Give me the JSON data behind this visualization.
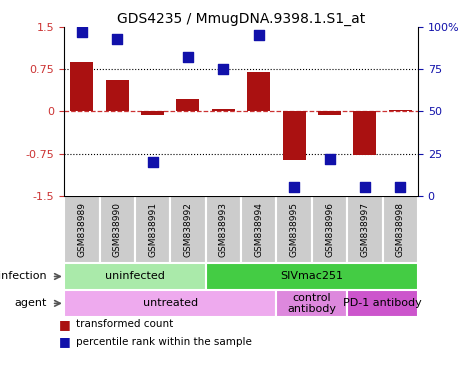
{
  "title": "GDS4235 / MmugDNA.9398.1.S1_at",
  "samples": [
    "GSM838989",
    "GSM838990",
    "GSM838991",
    "GSM838992",
    "GSM838993",
    "GSM838994",
    "GSM838995",
    "GSM838996",
    "GSM838997",
    "GSM838998"
  ],
  "bar_values": [
    0.88,
    0.55,
    -0.07,
    0.22,
    0.05,
    0.7,
    -0.87,
    -0.07,
    -0.78,
    0.02
  ],
  "percentile_values": [
    97,
    93,
    20,
    82,
    75,
    95,
    5,
    22,
    5,
    5
  ],
  "bar_color": "#aa1111",
  "dot_color": "#1111aa",
  "ylim": [
    -1.5,
    1.5
  ],
  "yticks": [
    -1.5,
    -0.75,
    0,
    0.75,
    1.5
  ],
  "ytick_labels": [
    "-1.5",
    "-0.75",
    "0",
    "0.75",
    "1.5"
  ],
  "right_yticks": [
    0,
    25,
    50,
    75,
    100
  ],
  "right_ytick_labels": [
    "0",
    "25",
    "50",
    "75",
    "100%"
  ],
  "hlines": [
    0.75,
    -0.75
  ],
  "infection_labels": [
    {
      "text": "uninfected",
      "start": 0,
      "end": 3,
      "color": "#aaeaaa"
    },
    {
      "text": "SIVmac251",
      "start": 4,
      "end": 9,
      "color": "#44cc44"
    }
  ],
  "agent_labels": [
    {
      "text": "untreated",
      "start": 0,
      "end": 5,
      "color": "#eeaaee"
    },
    {
      "text": "control\nantibody",
      "start": 6,
      "end": 7,
      "color": "#dd88dd"
    },
    {
      "text": "PD-1 antibody",
      "start": 8,
      "end": 9,
      "color": "#cc55cc"
    }
  ],
  "legend_items": [
    {
      "label": "transformed count",
      "color": "#aa1111"
    },
    {
      "label": "percentile rank within the sample",
      "color": "#1111aa"
    }
  ],
  "infection_row_label": "infection",
  "agent_row_label": "agent",
  "background_color": "#ffffff",
  "sample_box_color": "#cccccc",
  "bar_width": 0.65,
  "dot_size": 45
}
